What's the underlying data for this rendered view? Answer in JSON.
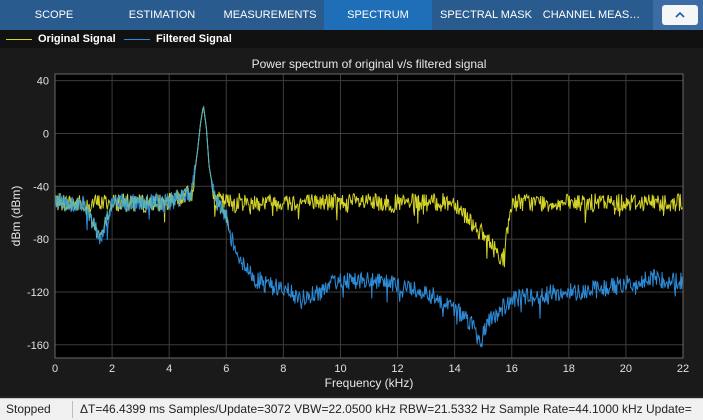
{
  "tabs": [
    {
      "label": "SCOPE",
      "active": false
    },
    {
      "label": "ESTIMATION",
      "active": false
    },
    {
      "label": "MEASUREMENTS",
      "active": false
    },
    {
      "label": "SPECTRUM",
      "active": true
    },
    {
      "label": "SPECTRAL MASK",
      "active": false
    },
    {
      "label": "CHANNEL MEAS…",
      "active": false
    }
  ],
  "legend": {
    "original": {
      "label": "Original Signal",
      "color": "#d4d428"
    },
    "filtered": {
      "label": "Filtered Signal",
      "color": "#2c8ad6"
    }
  },
  "colors": {
    "accent": "#1f6fb8",
    "tabbar": "#2a5b8f",
    "plot_bg": "#000000",
    "grid": "#3c3c3c",
    "original": "#d4d428",
    "filtered": "#2c8ad6",
    "overlap": "#5fb3b3"
  },
  "chart_data": {
    "type": "line",
    "title": "Power spectrum of original v/s filtered signal",
    "xlabel": "Frequency (kHz)",
    "ylabel": "dBm (dBm)",
    "xlim": [
      0,
      22
    ],
    "ylim": [
      -170,
      45
    ],
    "xticks": [
      0,
      2,
      4,
      6,
      8,
      10,
      12,
      14,
      16,
      18,
      20,
      22
    ],
    "yticks": [
      40,
      0,
      -40,
      -80,
      -120,
      -160
    ],
    "grid": true,
    "legend_position": "top-left",
    "series": [
      {
        "name": "Original Signal",
        "x": [
          0,
          1,
          2,
          3,
          4,
          4.8,
          5.0,
          5.1,
          5.2,
          5.3,
          5.4,
          5.6,
          6,
          8,
          10,
          12,
          14,
          15.7,
          16,
          18,
          20,
          22
        ],
        "y": [
          -52,
          -53,
          -52,
          -53,
          -52,
          -45,
          -12,
          8,
          21,
          5,
          -25,
          -50,
          -52,
          -52,
          -52,
          -53,
          -52,
          -95,
          -52,
          -53,
          -52,
          -52
        ]
      },
      {
        "name": "Filtered Signal",
        "x": [
          0,
          1,
          1.6,
          2,
          3,
          4,
          4.8,
          5.0,
          5.1,
          5.2,
          5.3,
          5.4,
          5.6,
          6,
          6.2,
          6.6,
          7,
          8,
          8.6,
          9.5,
          10,
          11,
          12,
          13,
          14,
          14.6,
          14.9,
          15.2,
          16,
          17,
          18,
          19,
          20,
          21,
          22
        ],
        "y": [
          -52,
          -53,
          -80,
          -52,
          -53,
          -52,
          -45,
          -12,
          8,
          21,
          5,
          -25,
          -50,
          -63,
          -80,
          -100,
          -110,
          -118,
          -125,
          -118,
          -110,
          -112,
          -115,
          -120,
          -132,
          -145,
          -158,
          -142,
          -126,
          -122,
          -120,
          -118,
          -114,
          -110,
          -112
        ]
      }
    ]
  },
  "status": {
    "state": "Stopped",
    "info": "ΔT=46.4399 ms  Samples/Update=3072  VBW=22.0500 kHz  RBW=21.5332 Hz  Sample Rate=44.1000 kHz  Update="
  }
}
